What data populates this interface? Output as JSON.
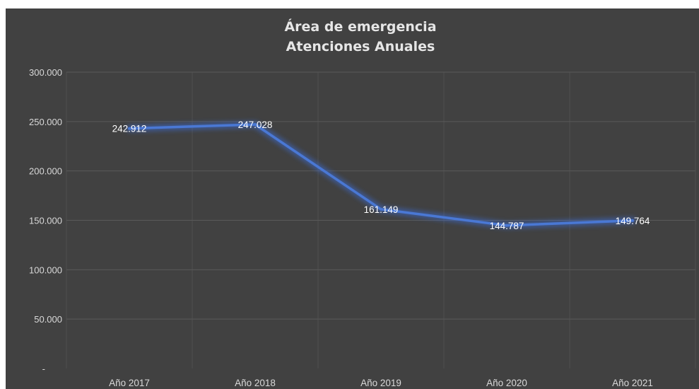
{
  "chart_data": {
    "type": "line",
    "title_lines": [
      "Área de emergencia",
      "Atenciones Anuales"
    ],
    "categories": [
      "Año 2017",
      "Año 2018",
      "Año 2019",
      "Año 2020",
      "Año 2021"
    ],
    "series": [
      {
        "values": [
          242912,
          247028,
          161149,
          144787,
          149764
        ],
        "labels": [
          "242.912",
          "247.028",
          "161.149",
          "144.787",
          "149.764"
        ]
      }
    ],
    "y_ticks": [
      {
        "value": 0,
        "label": "-"
      },
      {
        "value": 50000,
        "label": "50.000"
      },
      {
        "value": 100000,
        "label": "100.000"
      },
      {
        "value": 150000,
        "label": "150.000"
      },
      {
        "value": 200000,
        "label": "200.000"
      },
      {
        "value": 250000,
        "label": "250.000"
      },
      {
        "value": 300000,
        "label": "300.000"
      }
    ],
    "ylim": [
      0,
      300000
    ],
    "xlabel": "",
    "ylabel": "",
    "grid": true,
    "legend": "none",
    "colors": {
      "background": "#414141",
      "line": "#4a78d4",
      "glow": "#3a6fe0",
      "text": "#d9d9d9",
      "gridline": "#595959"
    }
  }
}
